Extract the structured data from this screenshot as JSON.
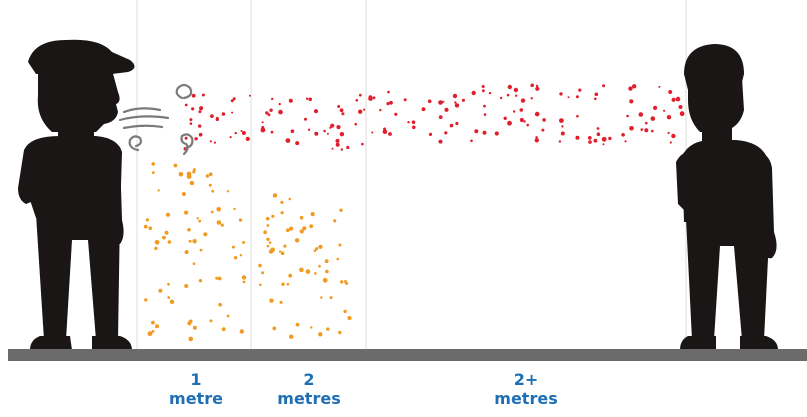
{
  "colors": {
    "figure": "#1a1616",
    "ground": "#6b6b6b",
    "divider": "#d9d9d9",
    "large_droplet": "#f29a1f",
    "small_droplet": "#e01f2d",
    "label": "#1f6fb5",
    "breath": "#7a7a7a"
  },
  "icons": {
    "speaker": "person-exhaling-icon",
    "listener": "person-listening-icon",
    "breath": "breath-swirl-icon"
  },
  "distances": [
    {
      "number": "1",
      "unit": "metre"
    },
    {
      "number": "2",
      "unit": "metres"
    },
    {
      "number": "2+",
      "unit": "metres"
    }
  ]
}
